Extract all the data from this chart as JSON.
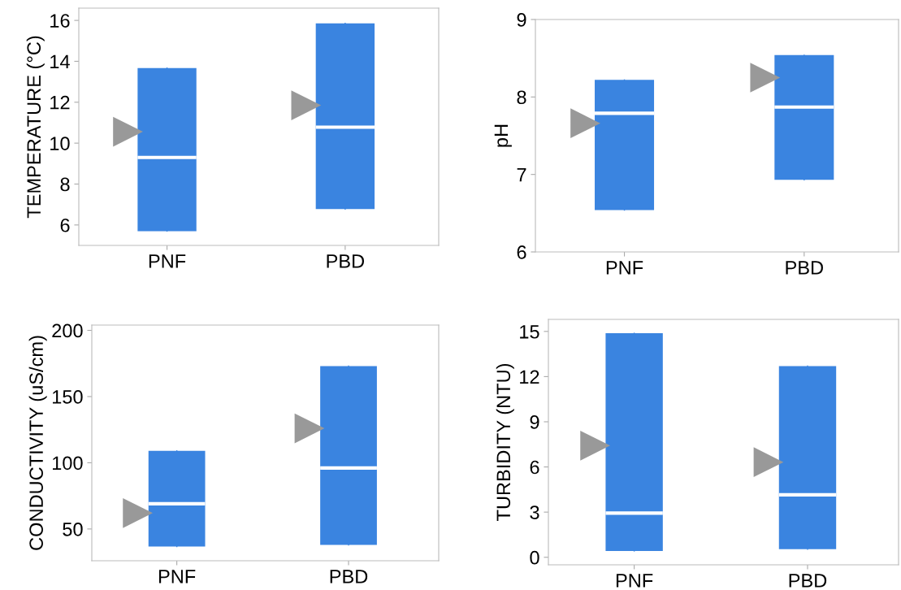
{
  "chart_data": [
    {
      "type": "box",
      "ylabel": "TEMPERATURE (°C)",
      "categories": [
        "PNF",
        "PBD"
      ],
      "color": "#3a84e0",
      "ylim": [
        5.0,
        16.6
      ],
      "yticks": [
        6,
        8,
        10,
        12,
        14,
        16
      ],
      "grid": false,
      "marker": "triangle",
      "boxes": [
        {
          "low": 5.7,
          "q1": 5.7,
          "median": 9.3,
          "q3": 13.67,
          "high": 13.67
        },
        {
          "low": 6.78,
          "q1": 6.78,
          "median": 10.78,
          "q3": 15.86,
          "high": 15.86
        }
      ],
      "series": [
        {
          "type": "scatter",
          "color": "#999999",
          "x": [
            "PNF",
            "PBD"
          ],
          "values": [
            10.56,
            11.85
          ]
        }
      ]
    },
    {
      "type": "box",
      "ylabel": "pH",
      "categories": [
        "PNF",
        "PBD"
      ],
      "color": "#3a84e0",
      "ylim": [
        6,
        9
      ],
      "yticks": [
        6,
        7,
        8,
        9
      ],
      "grid": false,
      "marker": "triangle",
      "boxes": [
        {
          "low": 6.54,
          "q1": 6.54,
          "median": 7.79,
          "q3": 8.22,
          "high": 8.22
        },
        {
          "low": 6.93,
          "q1": 6.93,
          "median": 7.87,
          "q3": 8.54,
          "high": 8.54
        }
      ],
      "series": [
        {
          "type": "scatter",
          "color": "#999999",
          "x": [
            "PNF",
            "PBD"
          ],
          "values": [
            7.66,
            8.25
          ]
        }
      ]
    },
    {
      "type": "box",
      "ylabel": "CONDUCTIVITY (uS/cm)",
      "categories": [
        "PNF",
        "PBD"
      ],
      "color": "#3a84e0",
      "ylim": [
        26,
        204
      ],
      "yticks": [
        50,
        100,
        150,
        200
      ],
      "grid": false,
      "marker": "triangle",
      "boxes": [
        {
          "low": 36.7,
          "q1": 36.7,
          "median": 69,
          "q3": 109,
          "high": 109
        },
        {
          "low": 38,
          "q1": 38,
          "median": 96,
          "q3": 173,
          "high": 173
        }
      ],
      "series": [
        {
          "type": "scatter",
          "color": "#999999",
          "x": [
            "PNF",
            "PBD"
          ],
          "values": [
            62,
            126
          ]
        }
      ]
    },
    {
      "type": "box",
      "ylabel": "TURBIDITY (NTU)",
      "categories": [
        "PNF",
        "PBD"
      ],
      "color": "#3a84e0",
      "ylim": [
        -0.5,
        15.8
      ],
      "yticks": [
        0,
        3,
        6,
        9,
        12,
        15
      ],
      "grid": false,
      "marker": "triangle",
      "boxes": [
        {
          "low": 0.42,
          "q1": 0.42,
          "median": 2.93,
          "q3": 14.88,
          "high": 14.88
        },
        {
          "low": 0.54,
          "q1": 0.54,
          "median": 4.15,
          "q3": 12.7,
          "high": 12.7
        }
      ],
      "series": [
        {
          "type": "scatter",
          "color": "#999999",
          "x": [
            "PNF",
            "PBD"
          ],
          "values": [
            7.42,
            6.32
          ]
        }
      ]
    }
  ]
}
